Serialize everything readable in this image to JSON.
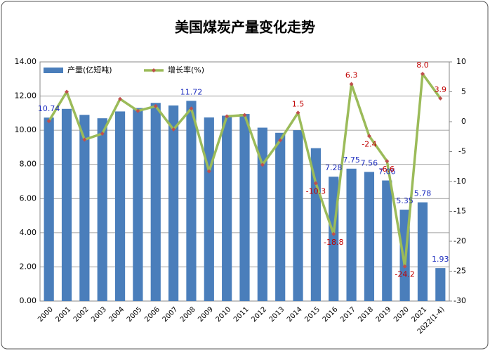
{
  "chart_data": {
    "type": "bar-line",
    "title": "美国煤炭产量变化走势",
    "categories": [
      "2000",
      "2001",
      "2002",
      "2003",
      "2004",
      "2005",
      "2006",
      "2007",
      "2008",
      "2009",
      "2010",
      "2011",
      "2012",
      "2013",
      "2014",
      "2015",
      "2016",
      "2017",
      "2018",
      "2019",
      "2020",
      "2021",
      "2022(1-4)"
    ],
    "series": [
      {
        "name": "产量(亿短吨)",
        "type": "bar",
        "color": "#4a7ebb",
        "label_color": "#1f2fbf",
        "values": [
          10.74,
          11.25,
          10.9,
          10.7,
          11.1,
          11.3,
          11.6,
          11.45,
          11.72,
          10.75,
          10.85,
          10.95,
          10.15,
          9.85,
          10.0,
          8.95,
          7.28,
          7.75,
          7.56,
          7.06,
          5.35,
          5.78,
          1.93
        ],
        "value_labels": [
          "10.74",
          null,
          null,
          null,
          null,
          null,
          null,
          null,
          "11.72",
          null,
          null,
          null,
          null,
          null,
          null,
          null,
          "7.28",
          "7.75",
          "7.56",
          "7.06",
          "5.35",
          "5.78",
          "1.93"
        ]
      },
      {
        "name": "增长率(%)",
        "type": "line",
        "axis": "y2",
        "color": "#9bbb59",
        "marker_color": "#c0504d",
        "label_color": "#c00000",
        "values": [
          0.1,
          5.0,
          -3.0,
          -2.0,
          3.8,
          1.8,
          2.6,
          -1.3,
          2.2,
          -8.3,
          0.9,
          1.1,
          -7.2,
          -3.1,
          1.5,
          -10.3,
          -18.8,
          6.3,
          -2.4,
          -6.6,
          -24.2,
          8.0,
          3.9
        ],
        "value_labels": [
          null,
          null,
          null,
          null,
          null,
          null,
          null,
          null,
          null,
          null,
          null,
          null,
          null,
          null,
          "1.5",
          "-10.3",
          "-18.8",
          "6.3",
          "-2.4",
          "-6.6",
          "-24.2",
          "8.0",
          "3.9"
        ]
      }
    ],
    "ylim": [
      0,
      14
    ],
    "yticks": [
      {
        "value": 0,
        "label": "0.00"
      },
      {
        "value": 2,
        "label": "2.00"
      },
      {
        "value": 4,
        "label": "4.00"
      },
      {
        "value": 6,
        "label": "6.00"
      },
      {
        "value": 8,
        "label": "8.00"
      },
      {
        "value": 10,
        "label": "10.00"
      },
      {
        "value": 12,
        "label": "12.00"
      },
      {
        "value": 14,
        "label": "14.00"
      }
    ],
    "y2lim": [
      -30,
      10
    ],
    "y2ticks": [
      -30,
      -25,
      -20,
      -15,
      -10,
      -5,
      0,
      5,
      10
    ],
    "grid": true
  }
}
